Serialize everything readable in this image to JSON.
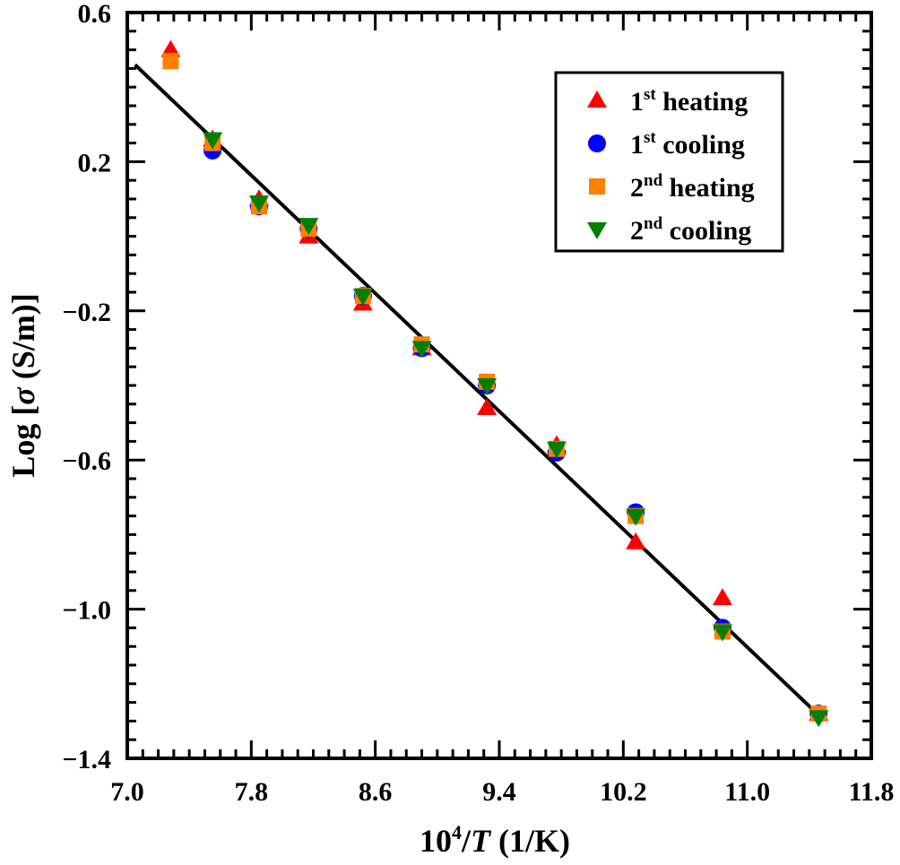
{
  "chart_data": {
    "type": "scatter",
    "title": "",
    "xlabel": "10^4/T (1/K)",
    "xlabel_parts": {
      "base": "10",
      "sup": "4",
      "slash": "/",
      "var": "T",
      "unit": " (1/K)"
    },
    "ylabel": "Log [σ (S/m)]",
    "ylabel_parts": {
      "pre": "Log [",
      "var": "σ",
      "post": " (S/m)]"
    },
    "xlim": [
      7.0,
      11.8
    ],
    "ylim": [
      -1.4,
      0.6
    ],
    "xticks": [
      "7.0",
      "7.8",
      "8.6",
      "9.4",
      "10.2",
      "11.0",
      "11.8"
    ],
    "yticks": [
      "0.6",
      "0.2",
      "−0.2",
      "−0.6",
      "−1.0",
      "−1.4"
    ],
    "grid": false,
    "legend_position": "top-right",
    "series": [
      {
        "name": "1st heating",
        "ordinal": "1",
        "suffix": "st",
        "word": "heating",
        "marker": "triangle-up",
        "color": "#ff0000",
        "x": [
          7.28,
          7.55,
          7.85,
          8.17,
          8.52,
          8.9,
          9.32,
          9.77,
          10.28,
          10.84,
          11.46
        ],
        "y": [
          0.5,
          0.26,
          0.1,
          0.0,
          -0.18,
          -0.3,
          -0.46,
          -0.56,
          -0.82,
          -0.97,
          -1.28
        ]
      },
      {
        "name": "1st cooling",
        "ordinal": "1",
        "suffix": "st",
        "word": "cooling",
        "marker": "circle",
        "color": "#0000ff",
        "x": [
          7.55,
          7.85,
          8.17,
          8.52,
          8.9,
          9.32,
          9.77,
          10.28,
          10.84,
          11.46
        ],
        "y": [
          0.23,
          0.08,
          0.02,
          -0.16,
          -0.3,
          -0.4,
          -0.58,
          -0.74,
          -1.05,
          -1.28
        ]
      },
      {
        "name": "2nd heating",
        "ordinal": "2",
        "suffix": "nd",
        "word": "heating",
        "marker": "square",
        "color": "#ff7f00",
        "x": [
          7.28,
          7.55,
          7.85,
          8.17,
          8.52,
          8.9,
          9.32,
          9.77,
          10.28,
          10.84,
          11.46
        ],
        "y": [
          0.47,
          0.25,
          0.08,
          0.02,
          -0.16,
          -0.29,
          -0.39,
          -0.57,
          -0.75,
          -1.06,
          -1.28
        ]
      },
      {
        "name": "2nd cooling",
        "ordinal": "2",
        "suffix": "nd",
        "word": "cooling",
        "marker": "triangle-down",
        "color": "#008000",
        "x": [
          7.55,
          7.85,
          8.17,
          8.52,
          8.9,
          9.32,
          9.77,
          10.28,
          10.84,
          11.46
        ],
        "y": [
          0.26,
          0.09,
          0.03,
          -0.16,
          -0.3,
          -0.4,
          -0.57,
          -0.75,
          -1.06,
          -1.29
        ]
      }
    ],
    "fit_line": {
      "name": "linear fit",
      "color": "#000000",
      "x": [
        7.05,
        11.45
      ],
      "y": [
        0.46,
        -1.28
      ]
    }
  }
}
